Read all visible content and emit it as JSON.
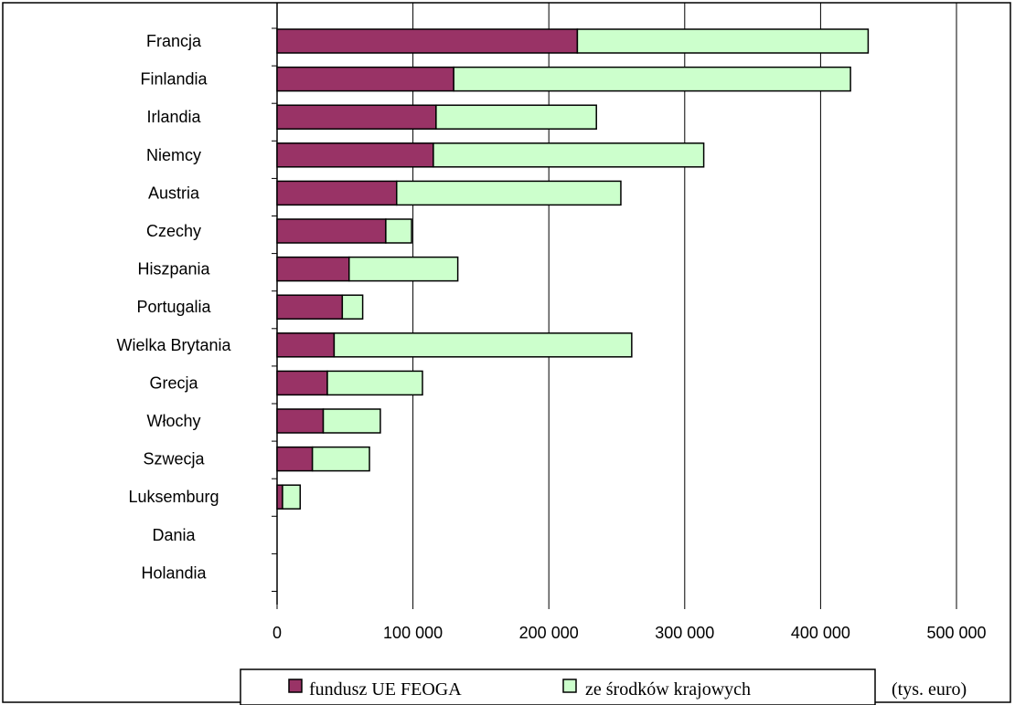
{
  "chart_data": {
    "type": "bar",
    "orientation": "horizontal",
    "stacked": true,
    "categories": [
      "Francja",
      "Finlandia",
      "Irlandia",
      "Niemcy",
      "Austria",
      "Czechy",
      "Hiszpania",
      "Portugalia",
      "Wielka Brytania",
      "Grecja",
      "Włochy",
      "Szwecja",
      "Luksemburg",
      "Dania",
      "Holandia"
    ],
    "series": [
      {
        "name": "fundusz UE FEOGA",
        "color": "#993366",
        "values": [
          221000,
          130000,
          117000,
          115000,
          88000,
          80000,
          53000,
          48000,
          42000,
          37000,
          34000,
          26000,
          4000,
          0,
          0
        ]
      },
      {
        "name": "ze  środków krajowych",
        "color": "#ccffcc",
        "values": [
          214000,
          292000,
          118000,
          199000,
          165000,
          19000,
          80000,
          15000,
          219000,
          70000,
          42000,
          42000,
          13000,
          0,
          0
        ]
      }
    ],
    "xlim": [
      0,
      500000
    ],
    "x_ticks": [
      0,
      100000,
      200000,
      300000,
      400000,
      500000
    ],
    "x_tick_labels": [
      "0",
      "100 000",
      "200 000",
      "300 000",
      "400 000",
      "500 000"
    ],
    "grid": "vertical",
    "legend": "bottom",
    "unit_label": "(tys. euro)",
    "title": "",
    "xlabel": "",
    "ylabel": ""
  }
}
